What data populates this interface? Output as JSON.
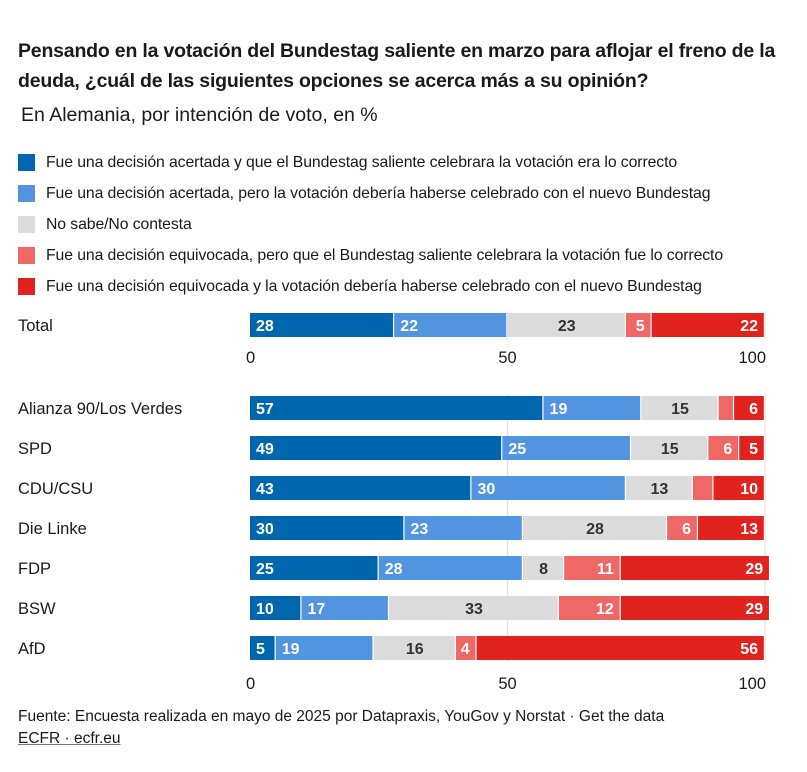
{
  "title": "Pensando en la votación del Bundestag saliente en marzo para aflojar el freno de la deuda, ¿cuál de las siguientes opciones se acerca más a su opinión?",
  "subtitle": "En Alemania, por intención de voto, en %",
  "footer": {
    "source": "Fuente: Encuesta realizada en mayo de 2025 por Datapraxis, YouGov y Norstat · Get the data",
    "credit": "ECFR · ecfr.eu"
  },
  "chart_data": {
    "type": "bar",
    "orientation": "horizontal",
    "stacked": true,
    "title": "Pensando en la votación del Bundestag saliente en marzo para aflojar el freno de la deuda, ¿cuál de las siguientes opciones se acerca más a su opinión?",
    "subtitle": "En Alemania, por intención de voto, en %",
    "xlim": [
      0,
      100
    ],
    "xticks": [
      0,
      50,
      100
    ],
    "grid": true,
    "legend_position": "top",
    "series": [
      {
        "name": "Fue una decisión acertada y que el Bundestag saliente celebrara la votación era lo correcto",
        "color": "#0067ae",
        "label_color": "#ffffff",
        "label_align": "left"
      },
      {
        "name": "Fue una decisión acertada, pero la votación debería haberse celebrado con el nuevo Bundestag",
        "color": "#5294e0",
        "label_color": "#ffffff",
        "label_align": "left"
      },
      {
        "name": "No sabe/No contesta",
        "color": "#dcdcdc",
        "label_color": "#333333",
        "label_align": "center"
      },
      {
        "name": "Fue una decisión equivocada, pero que el Bundestag saliente celebrara la votación fue lo correcto",
        "color": "#f06866",
        "label_color": "#ffffff",
        "label_align": "right"
      },
      {
        "name": "Fue una decisión equivocada y la votación debería haberse celebrado con el nuevo Bundestag",
        "color": "#e0231c",
        "label_color": "#ffffff",
        "label_align": "right"
      }
    ],
    "groups": [
      {
        "id": "total",
        "categories": [
          "Total"
        ],
        "values": [
          [
            28,
            22,
            23,
            5,
            22
          ]
        ],
        "labels": [
          [
            "28",
            "22",
            "23",
            "5",
            "22"
          ]
        ]
      },
      {
        "id": "parties",
        "categories": [
          "Alianza 90/Los Verdes",
          "SPD",
          "CDU/CSU",
          "Die Linke",
          "FDP",
          "BSW",
          "AfD"
        ],
        "values": [
          [
            57,
            19,
            15,
            3,
            6
          ],
          [
            49,
            25,
            15,
            6,
            5
          ],
          [
            43,
            30,
            13,
            4,
            10
          ],
          [
            30,
            23,
            28,
            6,
            13
          ],
          [
            25,
            28,
            8,
            11,
            29
          ],
          [
            10,
            17,
            33,
            12,
            29
          ],
          [
            5,
            19,
            16,
            4,
            56
          ]
        ],
        "labels": [
          [
            "57",
            "19",
            "15",
            "",
            "6"
          ],
          [
            "49",
            "25",
            "15",
            "6",
            "5"
          ],
          [
            "43",
            "30",
            "13",
            "",
            "10"
          ],
          [
            "30",
            "23",
            "28",
            "6",
            "13"
          ],
          [
            "25",
            "28",
            "8",
            "11",
            "29"
          ],
          [
            "10",
            "17",
            "33",
            "12",
            "29"
          ],
          [
            "5",
            "19",
            "16",
            "4",
            "56"
          ]
        ]
      }
    ]
  }
}
